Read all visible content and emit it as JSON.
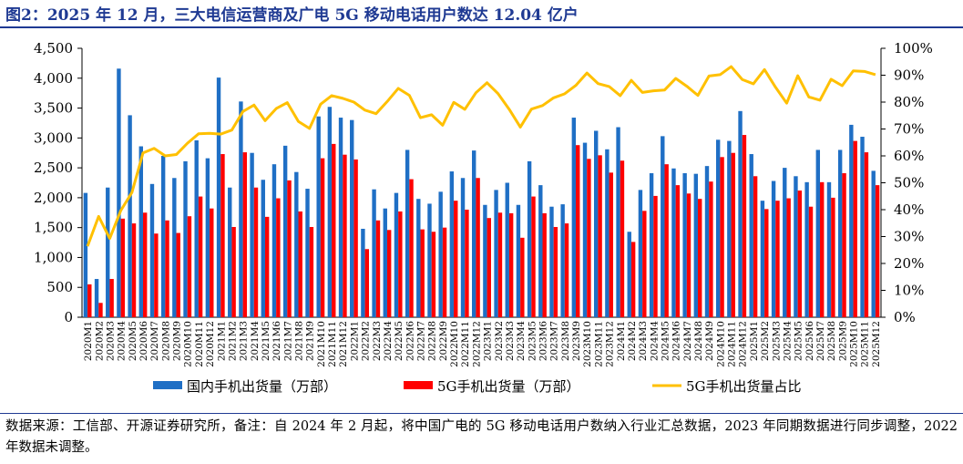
{
  "title": "图2：2025 年 12 月，三大电信运营商及广电 5G 移动电话用户数达 12.04 亿户",
  "source": "数据来源：工信部、开源证券研究所，备注：自 2024 年 2 月起，将中国广电的 5G 移动电话用户数纳入行业汇总数据，2023 年同期数据进行同步调整，2022 年数据未调整。",
  "colors": {
    "domestic": "#1f6fc5",
    "fiveg": "#ff0000",
    "share": "#ffc000",
    "title": "#1f3a93"
  },
  "chart_data": {
    "type": "bar",
    "categories": [
      "2020M1",
      "2020M2",
      "2020M3",
      "2020M4",
      "2020M5",
      "2020M6",
      "2020M7",
      "2020M8",
      "2020M9",
      "2020M10",
      "2020M11",
      "2020M12",
      "2021M1",
      "2021M2",
      "2021M3",
      "2021M4",
      "2021M5",
      "2021M6",
      "2021M7",
      "2021M8",
      "2021M9",
      "2021M10",
      "2021M11",
      "2021M12",
      "2022M1",
      "2022M2",
      "2022M3",
      "2022M4",
      "2022M5",
      "2022M6",
      "2022M7",
      "2022M8",
      "2022M9",
      "2022M10",
      "2022M11",
      "2022M12",
      "2023M1",
      "2023M2",
      "2023M3",
      "2023M4",
      "2023M5",
      "2023M6",
      "2023M7",
      "2023M8",
      "2023M9",
      "2023M10",
      "2023M11",
      "2023M12",
      "2024M1",
      "2024M2",
      "2024M3",
      "2024M4",
      "2024M5",
      "2024M6",
      "2024M7",
      "2024M8",
      "2024M9",
      "2024M10",
      "2024M11",
      "2024M12",
      "2025M1",
      "2025M2",
      "2025M3",
      "2025M4",
      "2025M5",
      "2025M6",
      "2025M7",
      "2025M8",
      "2025M9",
      "2025M10",
      "2025M11",
      "2025M12"
    ],
    "series": [
      {
        "name": "国内手机出货量（万部）",
        "type": "bar",
        "axis": "left",
        "values": [
          2080,
          640,
          2170,
          4160,
          3380,
          2860,
          2230,
          2700,
          2330,
          2610,
          2960,
          2660,
          4010,
          2170,
          3610,
          2750,
          2300,
          2560,
          2870,
          2430,
          2150,
          3360,
          3520,
          3340,
          3300,
          1480,
          2140,
          1820,
          2080,
          2800,
          1980,
          1900,
          2100,
          2440,
          2330,
          2790,
          1880,
          2130,
          2250,
          1880,
          2610,
          2210,
          1850,
          1890,
          3340,
          2920,
          3120,
          2810,
          3180,
          1430,
          2130,
          2410,
          3030,
          2490,
          2410,
          2400,
          2530,
          2970,
          2950,
          3450,
          2730,
          1950,
          2280,
          2500,
          2360,
          2260,
          2800,
          2260,
          2800,
          3220,
          3020,
          2450
        ]
      },
      {
        "name": "5G手机出货量（万部）",
        "type": "bar",
        "axis": "left",
        "values": [
          550,
          240,
          640,
          1650,
          1570,
          1750,
          1400,
          1620,
          1410,
          1690,
          2020,
          1820,
          2730,
          1510,
          2760,
          2170,
          1680,
          1990,
          2290,
          1770,
          1510,
          2660,
          2900,
          2720,
          2640,
          1140,
          1620,
          1460,
          1770,
          2310,
          1470,
          1430,
          1500,
          1950,
          1800,
          2330,
          1660,
          1750,
          1740,
          1330,
          2020,
          1740,
          1510,
          1570,
          2880,
          2650,
          2710,
          2420,
          2620,
          1260,
          1780,
          2030,
          2560,
          2210,
          2070,
          1980,
          2270,
          2680,
          2750,
          3050,
          2360,
          1810,
          1950,
          1990,
          2120,
          1850,
          2260,
          2000,
          2410,
          2950,
          2760,
          2210
        ]
      },
      {
        "name": "5G手机出货量占比",
        "type": "line",
        "axis": "right",
        "values": [
          26.4,
          37.5,
          29.3,
          39.7,
          46.4,
          61.1,
          62.8,
          60.0,
          60.5,
          64.7,
          68.2,
          68.4,
          68.1,
          69.6,
          76.5,
          78.9,
          73.1,
          77.6,
          79.8,
          72.8,
          70.2,
          79.2,
          82.4,
          81.4,
          80.0,
          77.0,
          75.7,
          80.2,
          85.1,
          82.5,
          74.2,
          75.3,
          71.4,
          79.9,
          77.3,
          83.5,
          87.2,
          83.1,
          77.3,
          70.7,
          77.4,
          78.7,
          81.6,
          83.1,
          86.2,
          90.8,
          86.9,
          85.8,
          82.4,
          88.1,
          83.6,
          84.2,
          84.5,
          88.8,
          85.9,
          82.5,
          89.7,
          90.2,
          93.2,
          88.4,
          86.8,
          92.1,
          85.5,
          79.6,
          89.8,
          81.9,
          80.7,
          88.5,
          86.1,
          91.6,
          91.4,
          90.2
        ]
      }
    ],
    "yticks_left": [
      "0",
      "500",
      "1,000",
      "1,500",
      "2,000",
      "2,500",
      "3,000",
      "3,500",
      "4,000",
      "4,500"
    ],
    "yticks_right": [
      "0%",
      "10%",
      "20%",
      "30%",
      "40%",
      "50%",
      "60%",
      "70%",
      "80%",
      "90%",
      "100%"
    ],
    "ylim_left": [
      0,
      4500
    ],
    "ylim_right": [
      0,
      100
    ],
    "legend_position": "bottom",
    "grid": false
  }
}
